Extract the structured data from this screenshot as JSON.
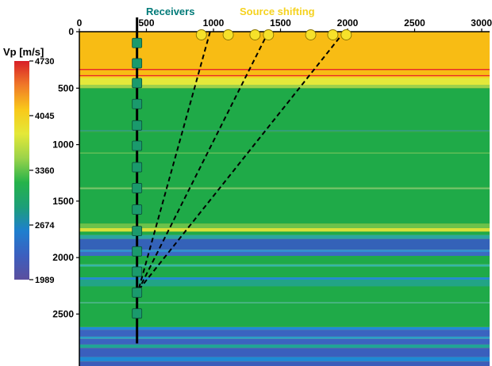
{
  "top_axis": {
    "ticks": [
      "0",
      "500",
      "1000",
      "1500",
      "2000",
      "2500",
      "3000"
    ],
    "values": [
      0,
      500,
      1000,
      1500,
      2000,
      2500,
      3000
    ],
    "range": [
      0,
      3000
    ]
  },
  "left_axis": {
    "ticks": [
      "0",
      "500",
      "1000",
      "1500",
      "2000",
      "2500"
    ],
    "values": [
      0,
      500,
      1000,
      1500,
      2000,
      2500
    ],
    "range": [
      0,
      2960
    ]
  },
  "labels": {
    "receivers": "Receivers",
    "source_shifting": "Source shifting"
  },
  "colorbar": {
    "title": "Vp [m/s]",
    "ticks": [
      "4730",
      "4045",
      "3360",
      "2674",
      "1989"
    ],
    "values": [
      4730,
      4045,
      3360,
      2674,
      1989
    ],
    "gradient": [
      "#d81f27",
      "#f07a28",
      "#f9c91a",
      "#e4e838",
      "#9bd34a",
      "#25b34a",
      "#1d9f78",
      "#1e7fcf",
      "#3c5fbf",
      "#5b4f9e"
    ]
  },
  "colors": {
    "receivers_label": "#007a78",
    "source_label": "#f5d21e",
    "receiver_marker": "#1a9a6c",
    "source_marker": "#f6e12a",
    "ray": "#000000"
  },
  "model": {
    "background": "#f8bc14",
    "layers": [
      {
        "top": 0,
        "bottom": 330,
        "color": "#f8bc14"
      },
      {
        "top": 330,
        "bottom": 340,
        "color": "#e8262a"
      },
      {
        "top": 340,
        "bottom": 385,
        "color": "#f8bc14"
      },
      {
        "top": 385,
        "bottom": 395,
        "color": "#e8262a"
      },
      {
        "top": 395,
        "bottom": 410,
        "color": "#f7d51f"
      },
      {
        "top": 410,
        "bottom": 470,
        "color": "#e4e83a"
      },
      {
        "top": 470,
        "bottom": 500,
        "color": "#9fd14a"
      },
      {
        "top": 500,
        "bottom": 870,
        "color": "#1faa48"
      },
      {
        "top": 870,
        "bottom": 885,
        "color": "#2d9f7a"
      },
      {
        "top": 885,
        "bottom": 1070,
        "color": "#1faa48"
      },
      {
        "top": 1070,
        "bottom": 1080,
        "color": "#5dbf5b"
      },
      {
        "top": 1080,
        "bottom": 1380,
        "color": "#1faa48"
      },
      {
        "top": 1380,
        "bottom": 1395,
        "color": "#6cc36f"
      },
      {
        "top": 1395,
        "bottom": 1700,
        "color": "#1faa48"
      },
      {
        "top": 1700,
        "bottom": 1740,
        "color": "#6cc24b"
      },
      {
        "top": 1740,
        "bottom": 1770,
        "color": "#d7e03a"
      },
      {
        "top": 1770,
        "bottom": 1800,
        "color": "#1faa48"
      },
      {
        "top": 1800,
        "bottom": 1835,
        "color": "#2aa6a0"
      },
      {
        "top": 1835,
        "bottom": 1930,
        "color": "#3462b8"
      },
      {
        "top": 1930,
        "bottom": 1950,
        "color": "#2f8fd2"
      },
      {
        "top": 1950,
        "bottom": 1985,
        "color": "#3b6bc2"
      },
      {
        "top": 1985,
        "bottom": 2060,
        "color": "#1faa48"
      },
      {
        "top": 2060,
        "bottom": 2080,
        "color": "#34b6a8"
      },
      {
        "top": 2080,
        "bottom": 2175,
        "color": "#1faa48"
      },
      {
        "top": 2175,
        "bottom": 2195,
        "color": "#1e8ad4"
      },
      {
        "top": 2195,
        "bottom": 2255,
        "color": "#22a486"
      },
      {
        "top": 2255,
        "bottom": 2395,
        "color": "#1faa48"
      },
      {
        "top": 2395,
        "bottom": 2405,
        "color": "#44b6a0"
      },
      {
        "top": 2405,
        "bottom": 2615,
        "color": "#1faa48"
      },
      {
        "top": 2615,
        "bottom": 2640,
        "color": "#1e8bd8"
      },
      {
        "top": 2640,
        "bottom": 2700,
        "color": "#3a64c0"
      },
      {
        "top": 2700,
        "bottom": 2720,
        "color": "#2aa0c8"
      },
      {
        "top": 2720,
        "bottom": 2770,
        "color": "#3a64c0"
      },
      {
        "top": 2770,
        "bottom": 2800,
        "color": "#1fa596"
      },
      {
        "top": 2800,
        "bottom": 2880,
        "color": "#3a5fbd"
      },
      {
        "top": 2880,
        "bottom": 2920,
        "color": "#1e8ad4"
      },
      {
        "top": 2920,
        "bottom": 2960,
        "color": "#3b5cba"
      }
    ]
  },
  "receivers": {
    "x": 430,
    "depths": [
      100,
      280,
      455,
      640,
      830,
      1010,
      1200,
      1385,
      1575,
      1765,
      1945,
      2125,
      2310,
      2495
    ],
    "line_top": -60,
    "line_bottom": 2760
  },
  "sources": {
    "depth": 0,
    "x": [
      910,
      1110,
      1310,
      1410,
      1725,
      1890,
      1990
    ]
  },
  "rays": [
    {
      "from_x": 975,
      "from_z": 0,
      "to_x": 440,
      "to_z": 2290
    },
    {
      "from_x": 1410,
      "from_z": 0,
      "to_x": 440,
      "to_z": 2290
    },
    {
      "from_x": 1975,
      "from_z": 0,
      "to_x": 440,
      "to_z": 2290
    }
  ]
}
